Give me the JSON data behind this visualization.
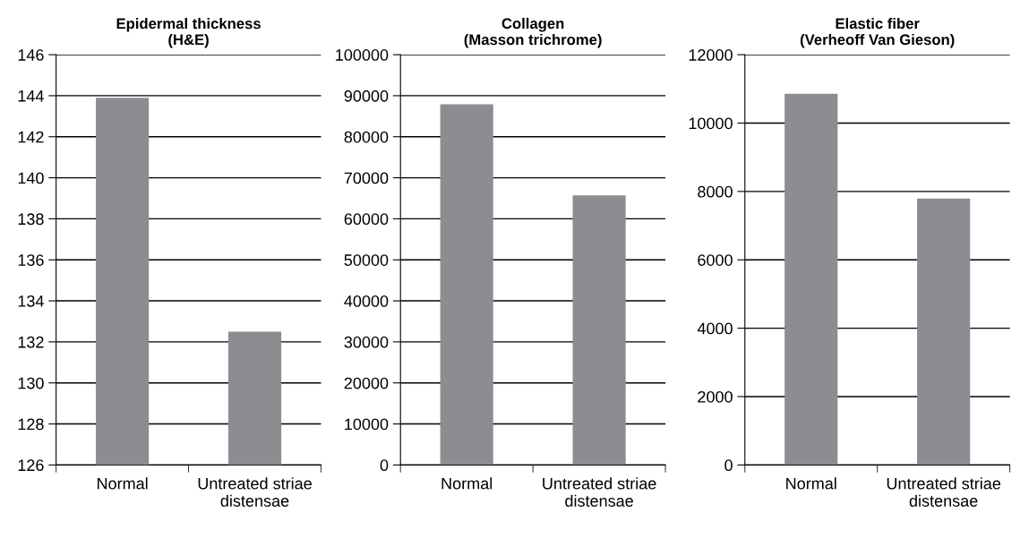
{
  "chart_data": [
    {
      "type": "bar",
      "title": "Epidermal thickness\n(H&E)",
      "categories": [
        "Normal",
        "Untreated striae\ndistensae"
      ],
      "values": [
        143.9,
        132.5
      ],
      "color": "#8c8d91",
      "ylim": [
        126,
        146
      ],
      "yticks": [
        126,
        128,
        130,
        132,
        134,
        136,
        138,
        140,
        142,
        144,
        146
      ],
      "grid": "y"
    },
    {
      "type": "bar",
      "title": "Collagen\n(Masson trichrome)",
      "categories": [
        "Normal",
        "Untreated striae\ndistensae"
      ],
      "values": [
        87900,
        65700
      ],
      "color": "#8c8d91",
      "ylim": [
        0,
        100000
      ],
      "yticks": [
        0,
        10000,
        20000,
        30000,
        40000,
        50000,
        60000,
        70000,
        80000,
        90000,
        100000
      ],
      "grid": "y"
    },
    {
      "type": "bar",
      "title": "Elastic fiber\n(Verheoff Van Gieson)",
      "categories": [
        "Normal",
        "Untreated striae\ndistensae"
      ],
      "values": [
        10860,
        7790
      ],
      "color": "#8c8d91",
      "ylim": [
        0,
        12000
      ],
      "yticks": [
        0,
        2000,
        4000,
        6000,
        8000,
        10000,
        12000
      ],
      "grid": "y"
    }
  ]
}
